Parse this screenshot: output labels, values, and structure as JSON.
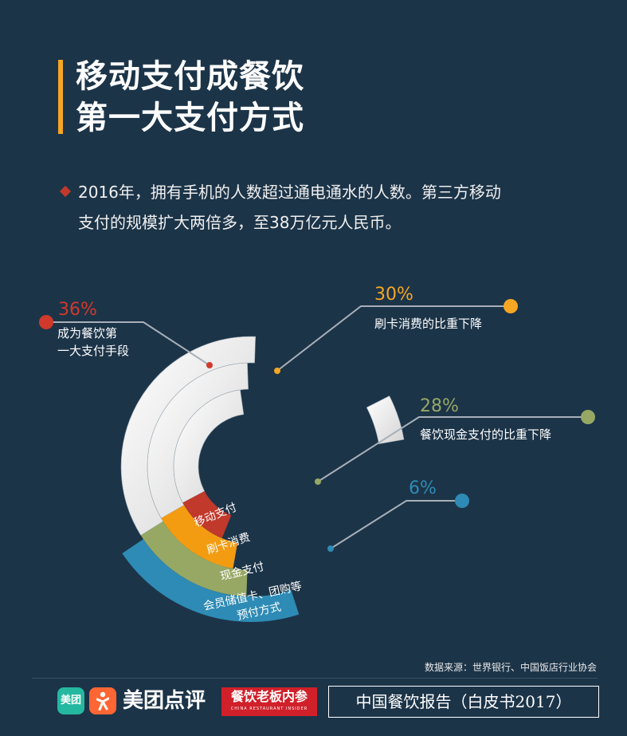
{
  "title": {
    "line1": "移动支付成餐饮",
    "line2": "第一大支付方式"
  },
  "intro": {
    "line1": "2016年，拥有手机的人数超过通电通水的人数。第三方移动",
    "line2": "支付的规模扩大两倍多，至38万亿元人民币。"
  },
  "chart_data": {
    "type": "radial-bar",
    "categories": [
      "移动支付",
      "刷卡消费",
      "现金支付",
      "会员储值卡、团购等预付方式"
    ],
    "values": [
      36,
      30,
      28,
      6
    ],
    "unit": "%",
    "annotations": [
      {
        "value": "36%",
        "text_line1": "成为餐饮第",
        "text_line2": "一大支付手段",
        "color": "#d0392b"
      },
      {
        "value": "30%",
        "text_line1": "刷卡消费的比重下降",
        "text_line2": "",
        "color": "#f5a623"
      },
      {
        "value": "28%",
        "text_line1": "餐饮现金支付的比重下降",
        "text_line2": "",
        "color": "#97a865"
      },
      {
        "value": "6%",
        "text_line1": "",
        "text_line2": "",
        "color": "#2e8bb5"
      }
    ],
    "band_labels": [
      "移动支付",
      "刷卡消费",
      "现金支付",
      "会员储值卡、团购等",
      "预付方式"
    ],
    "colors": [
      "#c0392b",
      "#f39c12",
      "#97a865",
      "#2e8bb5"
    ]
  },
  "source": "数据来源：世界银行、中国饭店行业协会",
  "footer": {
    "meituan_badge": "美团",
    "brand_name": "美团点评",
    "canyin_logo": "餐饮老板内参",
    "canyin_sub": "CHINA RESTAURANT INSIDER",
    "report_title": "中国餐饮报告（白皮书2017）"
  }
}
